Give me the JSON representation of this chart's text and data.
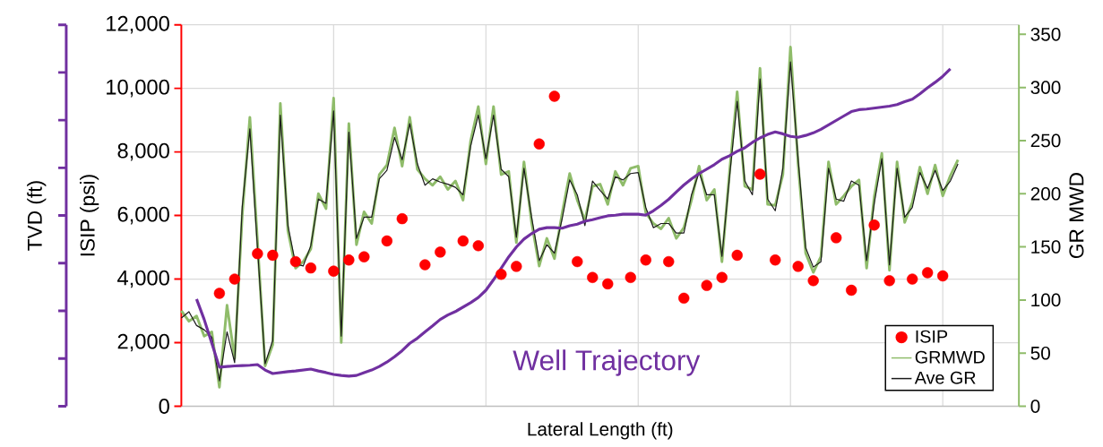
{
  "chart_data": {
    "type": "line",
    "xlabel": "Lateral Length (ft)",
    "ylabel": "ISIP (psi)",
    "y2label": "GR MWD",
    "y3label": "TVD (ft)",
    "categories": [
      null,
      null,
      null,
      null,
      null,
      null,
      null,
      null,
      null,
      null,
      null,
      null,
      null,
      null,
      null,
      null,
      null,
      null,
      null,
      null,
      null,
      null,
      null,
      null,
      null,
      null,
      null,
      null,
      null,
      null,
      null,
      null,
      null,
      null,
      null,
      null,
      null,
      null,
      null,
      null,
      null,
      null,
      null,
      null,
      null,
      null,
      null,
      null,
      null,
      null,
      null,
      null,
      null,
      null,
      null,
      null,
      null,
      null,
      null,
      null,
      null,
      null,
      null,
      null,
      null,
      null,
      null,
      null,
      null,
      null,
      null,
      null,
      null,
      null,
      null,
      null,
      null,
      null,
      null,
      null,
      null,
      null,
      null,
      null,
      null,
      null,
      null,
      null,
      null,
      null,
      null,
      null,
      null,
      null,
      null,
      null,
      null,
      null,
      null,
      null,
      null,
      null,
      null,
      null,
      null,
      null,
      null,
      null,
      null,
      null,
      null
    ],
    "ylim": [
      0,
      12000
    ],
    "yticks": [
      0,
      {
        "value": 2000,
        "label": "2,000"
      },
      {
        "value": 4000,
        "label": "4,000"
      },
      {
        "value": 6000,
        "label": "6,000"
      },
      {
        "value": 8000,
        "label": "8,000"
      },
      {
        "value": 10000,
        "label": "10,000"
      },
      {
        "value": 12000,
        "label": "12,000"
      }
    ],
    "y2lim": [
      0,
      359
    ],
    "y2ticks": [
      0,
      50,
      100,
      150,
      200,
      250,
      300,
      350
    ],
    "grid": true,
    "legend": "bottom right",
    "series": [
      {
        "name": "ISIP",
        "type": "scatter",
        "marker": "circle",
        "color": "#ff0000",
        "values": [
          null,
          null,
          null,
          null,
          null,
          3550,
          null,
          4000,
          null,
          null,
          4800,
          null,
          4750,
          null,
          null,
          4550,
          null,
          4350,
          null,
          null,
          4250,
          null,
          4600,
          null,
          4700,
          null,
          null,
          5200,
          null,
          5900,
          null,
          null,
          4450,
          null,
          4850,
          null,
          null,
          5200,
          null,
          5050,
          null,
          null,
          4150,
          null,
          4400,
          null,
          null,
          8250,
          null,
          9750,
          null,
          null,
          4550,
          null,
          4050,
          null,
          3850,
          null,
          null,
          4050,
          null,
          4600,
          null,
          null,
          4550,
          null,
          3400,
          null,
          null,
          3800,
          null,
          4050,
          null,
          4750,
          null,
          null,
          7300,
          null,
          4600,
          null,
          null,
          4400,
          null,
          3950,
          null,
          null,
          5300,
          null,
          3650,
          null,
          null,
          5700,
          null,
          3950,
          null,
          null,
          4000,
          null,
          4200,
          null,
          4100,
          null,
          null,
          null,
          null,
          null,
          null,
          null,
          null,
          null,
          null
        ]
      },
      {
        "name": "GRMWD",
        "axis": "y2",
        "color": "#8fbc6a",
        "values": [
          90,
          80,
          85,
          66,
          70,
          18,
          95,
          45,
          180,
          272,
          155,
          38,
          58,
          285,
          165,
          130,
          136,
          148,
          200,
          186,
          290,
          60,
          266,
          152,
          183,
          172,
          218,
          227,
          262,
          226,
          272,
          223,
          214,
          208,
          216,
          204,
          212,
          194,
          250,
          282,
          228,
          282,
          218,
          221,
          154,
          230,
          173,
          132,
          158,
          139,
          181,
          219,
          194,
          175,
          207,
          209,
          190,
          221,
          208,
          224,
          226,
          182,
          172,
          167,
          177,
          158,
          168,
          194,
          226,
          194,
          204,
          136,
          221,
          296,
          207,
          204,
          318,
          190,
          189,
          218,
          338,
          228,
          144,
          126,
          141,
          230,
          190,
          198,
          207,
          213,
          130,
          197,
          238,
          128,
          230,
          173,
          192,
          225,
          200,
          227,
          198,
          217,
          232,
          null,
          null,
          null,
          null,
          null,
          null,
          null,
          null
        ]
      },
      {
        "name": "Ave GR",
        "axis": "y2",
        "color": "#1a1a1a",
        "values": [
          83,
          89,
          76,
          72,
          65,
          24,
          70,
          41,
          188,
          261,
          149,
          40,
          62,
          274,
          170,
          134,
          132,
          151,
          195,
          191,
          278,
          66,
          258,
          158,
          178,
          178,
          214,
          222,
          253,
          232,
          266,
          228,
          208,
          214,
          211,
          209,
          206,
          199,
          245,
          274,
          233,
          274,
          223,
          216,
          159,
          224,
          178,
          137,
          152,
          144,
          176,
          213,
          199,
          170,
          212,
          203,
          195,
          216,
          213,
          219,
          220,
          187,
          168,
          172,
          172,
          163,
          163,
          199,
          220,
          199,
          199,
          141,
          216,
          287,
          212,
          199,
          308,
          195,
          184,
          224,
          324,
          233,
          149,
          131,
          136,
          224,
          195,
          193,
          212,
          208,
          137,
          191,
          233,
          133,
          224,
          178,
          187,
          220,
          205,
          222,
          203,
          212,
          228,
          null,
          null,
          null,
          null,
          null,
          null,
          null,
          null
        ]
      },
      {
        "name": "Well Trajectory",
        "color": "#7030a0",
        "values": [
          null,
          null,
          3370,
          2730,
          1980,
          1230,
          1250,
          1270,
          1280,
          1290,
          1310,
          1140,
          1030,
          1060,
          1090,
          1110,
          1140,
          1170,
          1110,
          1060,
          1000,
          970,
          950,
          970,
          1060,
          1140,
          1250,
          1390,
          1560,
          1750,
          1980,
          2140,
          2340,
          2530,
          2730,
          2870,
          2980,
          3120,
          3260,
          3420,
          3650,
          3980,
          4340,
          4700,
          5010,
          5260,
          5430,
          5570,
          5620,
          5620,
          5600,
          5680,
          5730,
          5820,
          5870,
          5930,
          5990,
          6010,
          6040,
          6040,
          6040,
          6010,
          6150,
          6320,
          6510,
          6740,
          6960,
          7150,
          7320,
          7460,
          7600,
          7770,
          7880,
          8020,
          8130,
          8300,
          8440,
          8550,
          8630,
          8570,
          8490,
          8460,
          8520,
          8600,
          8710,
          8850,
          8990,
          9130,
          9270,
          9330,
          9350,
          9380,
          9410,
          9440,
          9490,
          9580,
          9660,
          9830,
          10020,
          10190,
          10380,
          10610,
          null,
          null,
          null,
          null,
          null,
          null,
          null,
          null,
          null
        ]
      }
    ]
  }
}
